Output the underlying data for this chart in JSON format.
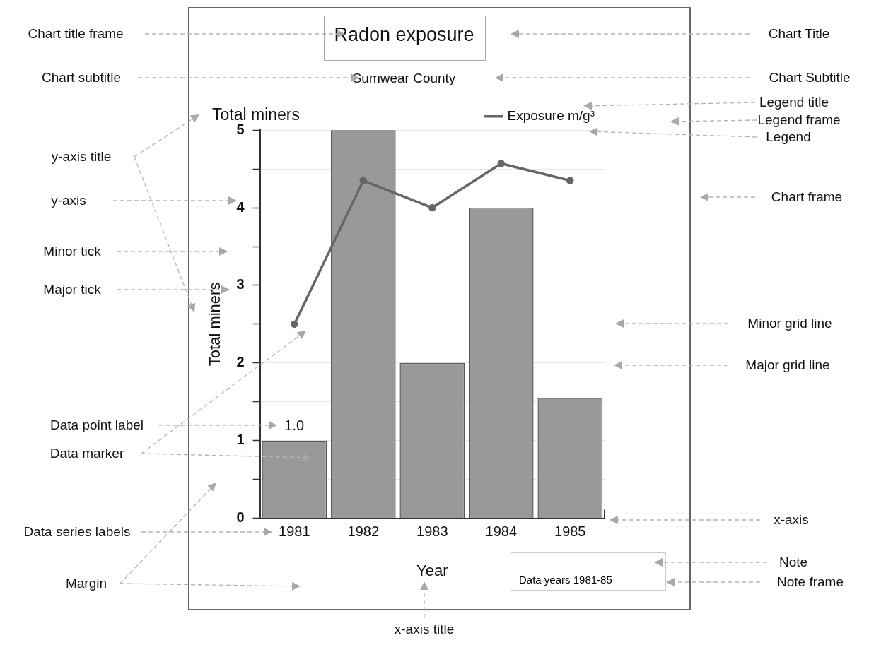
{
  "chart_data": {
    "type": "bar",
    "title": "Radon exposure",
    "subtitle": "Sumwear County",
    "xlabel": "Year",
    "ylabel": "Total miners",
    "categories": [
      "1981",
      "1982",
      "1983",
      "1984",
      "1985"
    ],
    "series": [
      {
        "color": "#999999",
        "values": [
          1.0,
          5,
          2,
          4,
          1.55
        ],
        "value_labels": [
          "1.0",
          null,
          null,
          null,
          null
        ]
      },
      {
        "type": "line",
        "name": "Exposure m/g³",
        "color": "#666666",
        "values": [
          2.5,
          4.35,
          4.0,
          4.57,
          4.35
        ]
      }
    ],
    "ylim": [
      0,
      5
    ],
    "yticks": [
      0,
      {
        "value": 0.5,
        "label": null
      },
      1,
      {
        "value": 1.5,
        "label": null
      },
      2,
      {
        "value": 2.5,
        "label": null
      },
      3,
      {
        "value": 3.5,
        "label": null
      },
      4,
      {
        "value": 4.5,
        "label": null
      },
      5
    ],
    "grid": "y",
    "legend": "top right",
    "marker": "circle",
    "line_style": "solid",
    "annotations": [
      "Total miners",
      "Data years 1981-85",
      "Chart title frame",
      "Chart subtitle",
      "y-axis title",
      "y-axis",
      "Minor tick",
      "Major tick",
      "Data point label",
      "Data marker",
      "Data series labels",
      "Margin",
      "Chart Title",
      "Chart Subtitle",
      "Legend title",
      "Legend frame",
      "Legend",
      "Chart frame",
      "Minor grid line",
      "Major grid line",
      "x-axis",
      "Note",
      "Note frame",
      "x-axis title"
    ]
  }
}
